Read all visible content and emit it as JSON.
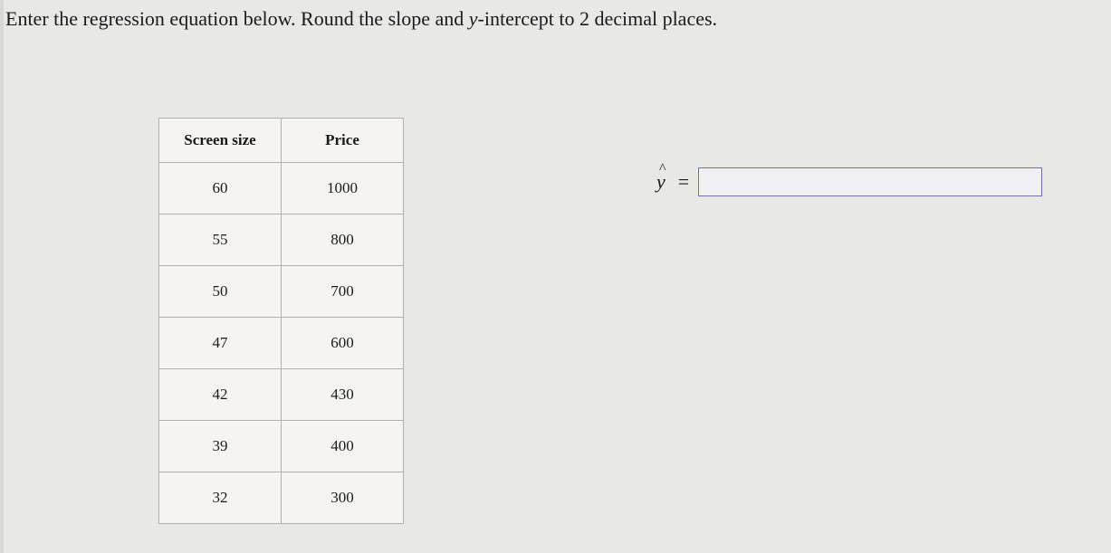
{
  "instruction": {
    "prefix": "Enter the regression equation below. Round the slope and ",
    "italic_y": "y",
    "suffix": "-intercept to 2 decimal places."
  },
  "table": {
    "columns": [
      "Screen size",
      "Price"
    ],
    "rows": [
      [
        "60",
        "1000"
      ],
      [
        "55",
        "800"
      ],
      [
        "50",
        "700"
      ],
      [
        "47",
        "600"
      ],
      [
        "42",
        "430"
      ],
      [
        "39",
        "400"
      ],
      [
        "32",
        "300"
      ]
    ],
    "border_color": "#b0b0ad",
    "background_color": "#f5f4f1",
    "header_fontsize": 17,
    "cell_fontsize": 17
  },
  "equation": {
    "label": "y",
    "equals": "=",
    "input_value": "",
    "input_placeholder": ""
  },
  "colors": {
    "page_background": "#e8e8e6",
    "text_color": "#1a1a1a",
    "input_border": "#7070b0",
    "input_background": "#f0f0f5"
  }
}
